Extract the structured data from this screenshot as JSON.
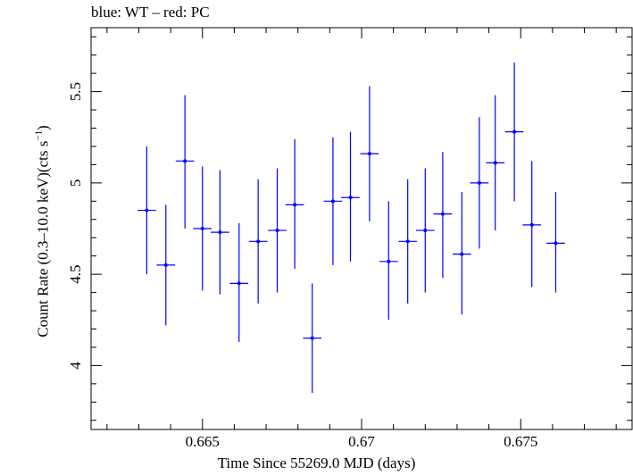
{
  "chart_data": {
    "type": "scatter",
    "title": "blue: WT – red: PC",
    "xlabel": "Time Since 55269.0 MJD (days)",
    "ylabel_main": "Count Rate (0.3–10.0 keV)(cts s",
    "ylabel_exp": "−1",
    "ylabel_close": ")",
    "xlim": [
      0.6615,
      0.6785
    ],
    "ylim": [
      3.65,
      5.85
    ],
    "x_ticks": [
      {
        "value": 0.665,
        "label": "0.665"
      },
      {
        "value": 0.67,
        "label": "0.67"
      },
      {
        "value": 0.675,
        "label": "0.675"
      }
    ],
    "y_ticks": [
      {
        "value": 4,
        "label": "4"
      },
      {
        "value": 4.5,
        "label": "4.5"
      },
      {
        "value": 5,
        "label": "5"
      },
      {
        "value": 5.5,
        "label": "5.5"
      }
    ],
    "series": [
      {
        "name": "WT",
        "color": "#0000ff",
        "xerr": 0.00029,
        "points": [
          {
            "x": 0.66325,
            "y": 4.85,
            "ylo": 4.5,
            "yhi": 5.2
          },
          {
            "x": 0.66385,
            "y": 4.55,
            "ylo": 4.22,
            "yhi": 4.88
          },
          {
            "x": 0.66445,
            "y": 5.12,
            "ylo": 4.75,
            "yhi": 5.48
          },
          {
            "x": 0.665,
            "y": 4.75,
            "ylo": 4.41,
            "yhi": 5.09
          },
          {
            "x": 0.66555,
            "y": 4.73,
            "ylo": 4.39,
            "yhi": 5.07
          },
          {
            "x": 0.66615,
            "y": 4.45,
            "ylo": 4.13,
            "yhi": 4.78
          },
          {
            "x": 0.66675,
            "y": 4.68,
            "ylo": 4.34,
            "yhi": 5.02
          },
          {
            "x": 0.66735,
            "y": 4.74,
            "ylo": 4.4,
            "yhi": 5.08
          },
          {
            "x": 0.6679,
            "y": 4.88,
            "ylo": 4.53,
            "yhi": 5.24
          },
          {
            "x": 0.66845,
            "y": 4.15,
            "ylo": 3.85,
            "yhi": 4.45
          },
          {
            "x": 0.6691,
            "y": 4.9,
            "ylo": 4.55,
            "yhi": 5.25
          },
          {
            "x": 0.66965,
            "y": 4.92,
            "ylo": 4.57,
            "yhi": 5.28
          },
          {
            "x": 0.67025,
            "y": 5.16,
            "ylo": 4.79,
            "yhi": 5.53
          },
          {
            "x": 0.67085,
            "y": 4.57,
            "ylo": 4.25,
            "yhi": 4.9
          },
          {
            "x": 0.67145,
            "y": 4.68,
            "ylo": 4.34,
            "yhi": 5.02
          },
          {
            "x": 0.672,
            "y": 4.74,
            "ylo": 4.4,
            "yhi": 5.08
          },
          {
            "x": 0.67255,
            "y": 4.83,
            "ylo": 4.48,
            "yhi": 5.17
          },
          {
            "x": 0.67315,
            "y": 4.61,
            "ylo": 4.28,
            "yhi": 4.95
          },
          {
            "x": 0.6737,
            "y": 5.0,
            "ylo": 4.64,
            "yhi": 5.36
          },
          {
            "x": 0.6742,
            "y": 5.11,
            "ylo": 4.74,
            "yhi": 5.48
          },
          {
            "x": 0.6748,
            "y": 5.28,
            "ylo": 4.9,
            "yhi": 5.66
          },
          {
            "x": 0.67535,
            "y": 4.77,
            "ylo": 4.43,
            "yhi": 5.12
          },
          {
            "x": 0.6761,
            "y": 4.67,
            "ylo": 4.4,
            "yhi": 4.95
          }
        ]
      }
    ],
    "grid": false,
    "legend": "none"
  }
}
